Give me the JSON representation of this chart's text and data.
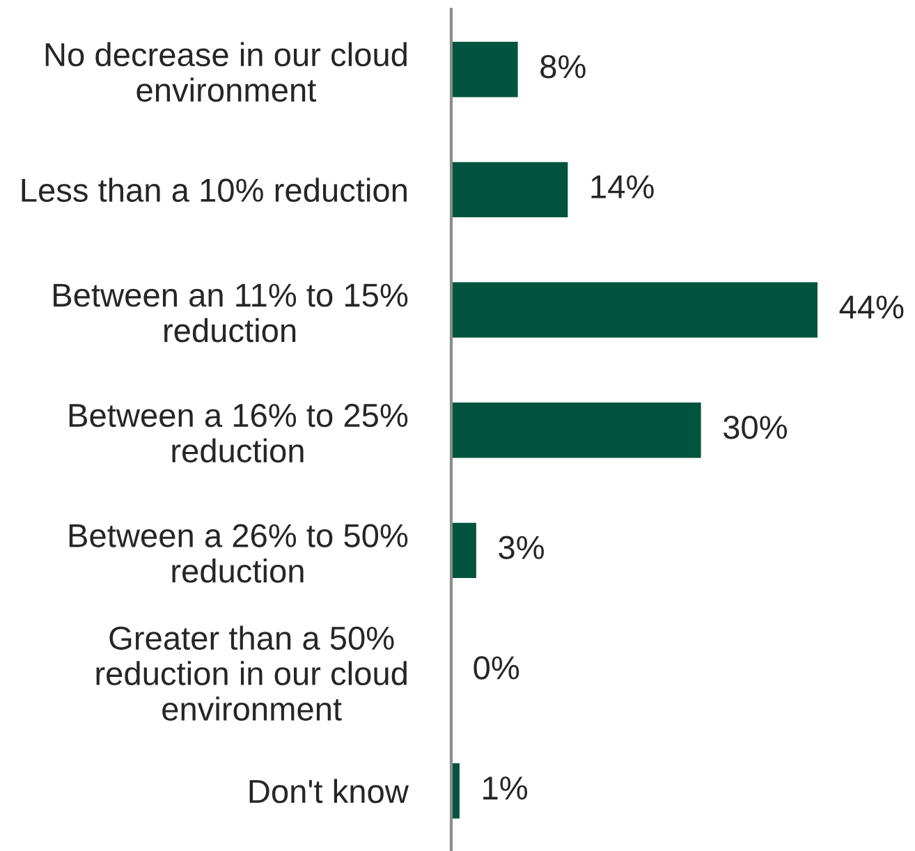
{
  "chart_data": {
    "type": "bar",
    "orientation": "horizontal",
    "categories": [
      "No decrease in our cloud environment",
      "Less than a 10% reduction",
      "Between an 11% to 15% reduction",
      "Between a 16% to 25% reduction",
      "Between a 26% to 50% reduction",
      "Greater than a 50% reduction in our cloud environment",
      "Don't know"
    ],
    "values": [
      8,
      14,
      44,
      30,
      3,
      0,
      1
    ],
    "value_labels": [
      "8%",
      "14%",
      "44%",
      "30%",
      "3%",
      "0%",
      "1%"
    ],
    "color": "#03543e",
    "tick_labels": "y"
  }
}
